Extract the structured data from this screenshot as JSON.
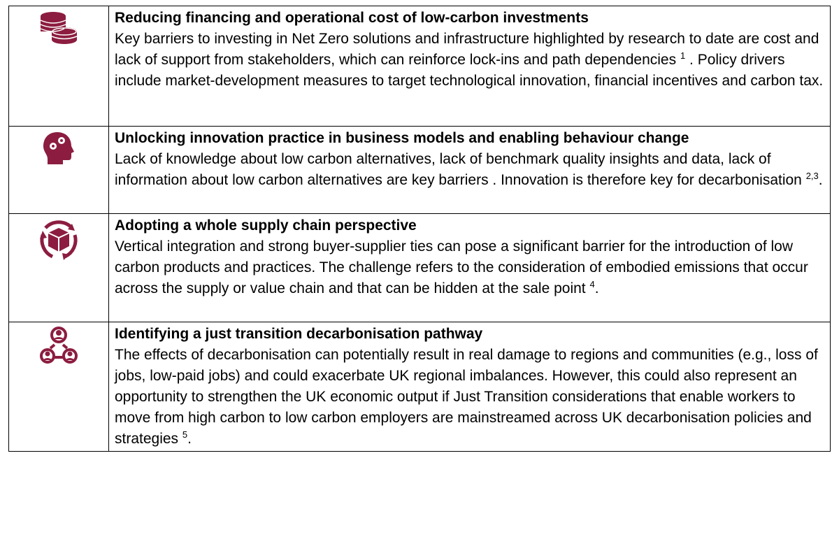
{
  "table": {
    "rows": [
      {
        "title": "Reducing financing and operational cost of low-carbon investments",
        "body": [
          {
            "text": "Key barriers to investing in Net Zero solutions and infrastructure highlighted by research to date are cost and lack of support from stakeholders, which can reinforce lock-ins and path dependencies "
          },
          {
            "sup": "1"
          },
          {
            "text": " . Policy drivers include market-development measures to target technological innovation, financial incentives and carbon tax."
          }
        ]
      },
      {
        "title": "Unlocking innovation practice in business models and enabling behaviour change",
        "body": [
          {
            "text": "Lack of knowledge about low carbon alternatives, lack of benchmark quality insights and data, lack of information about low carbon alternatives are key barriers . Innovation is therefore key for decarbonisation "
          },
          {
            "sup": "2,3"
          },
          {
            "text": "."
          }
        ]
      },
      {
        "title": "Adopting a whole supply chain perspective",
        "body": [
          {
            "text": "Vertical integration and strong buyer-supplier ties can pose a significant barrier for the introduction of low carbon products and practices. The challenge refers to the consideration of embodied emissions that occur across the supply or value chain and that can be hidden at the sale point "
          },
          {
            "sup": "4"
          },
          {
            "text": "."
          }
        ]
      },
      {
        "title": "Identifying a just transition decarbonisation pathway",
        "body": [
          {
            "text": "The effects of decarbonisation can potentially result in real damage to regions and communities (e.g., loss of jobs, low-paid jobs) and could exacerbate UK regional imbalances. However, this could also represent an opportunity to strengthen the UK economic output if Just Transition considerations that enable workers to move from high carbon to low carbon employers are mainstreamed across UK decarbonisation policies and strategies "
          },
          {
            "sup": "5"
          },
          {
            "text": "."
          }
        ]
      }
    ]
  }
}
